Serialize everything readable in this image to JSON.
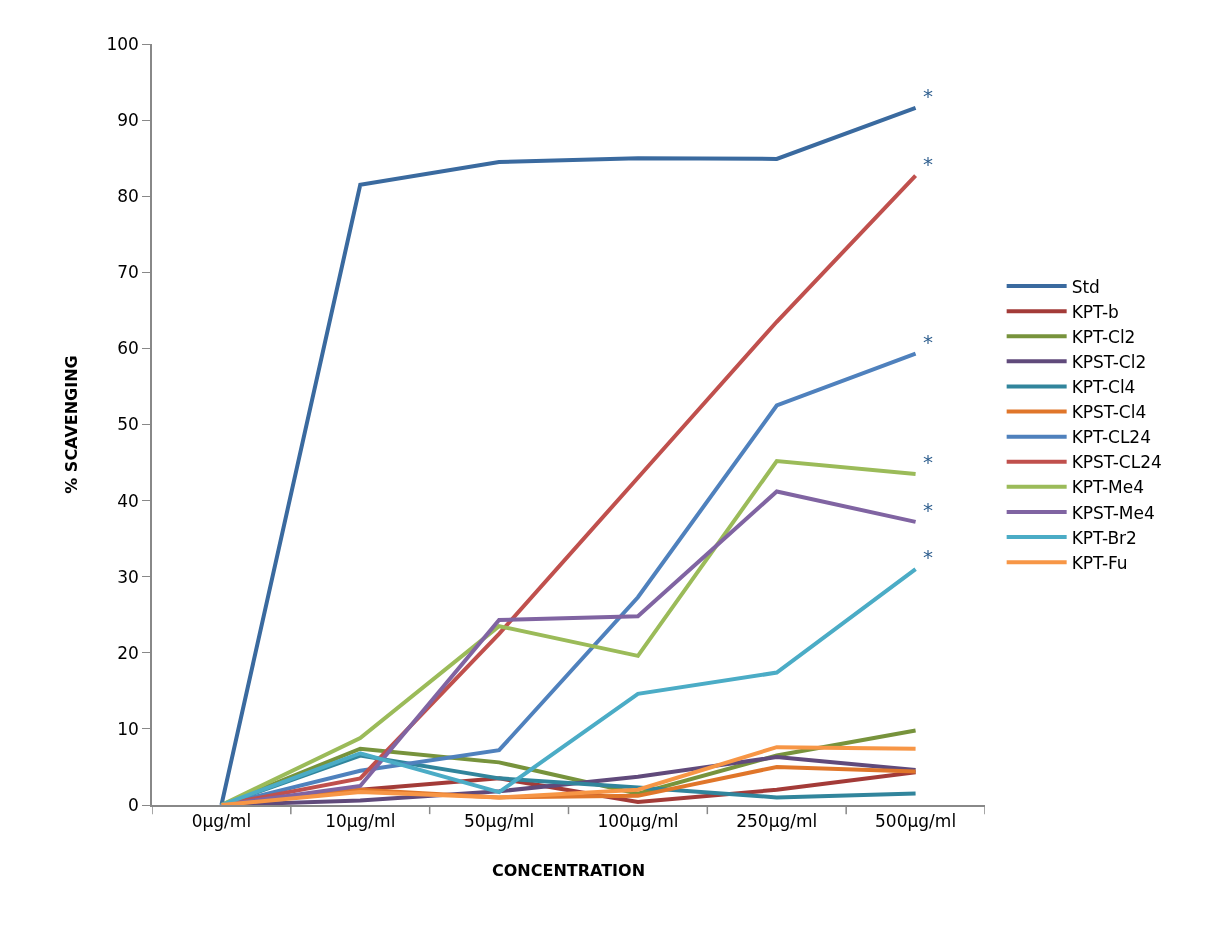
{
  "chart_data": {
    "type": "line",
    "xlabel": "CONCENTRATION",
    "ylabel": "% SCAVENGING",
    "categories": [
      "0μg/ml",
      "10μg/ml",
      "50μg/ml",
      "100μg/ml",
      "250μg/ml",
      "500μg/ml"
    ],
    "ylim": [
      0,
      100
    ],
    "yticks": [
      0,
      10,
      20,
      30,
      40,
      50,
      60,
      70,
      80,
      90,
      100
    ],
    "grid": false,
    "legend": "right",
    "marker": "none",
    "line_style": "solid",
    "series": [
      {
        "name": "Std",
        "color": "#3a6a9f",
        "values": [
          0,
          81.5,
          84.5,
          85,
          84.9,
          91.6
        ]
      },
      {
        "name": "KPT-b",
        "color": "#a33b38",
        "values": [
          0,
          2,
          3.5,
          0.4,
          2,
          4.3
        ]
      },
      {
        "name": "KPT-Cl2",
        "color": "#77933c",
        "values": [
          0,
          7.4,
          5.6,
          1.5,
          6.5,
          9.8
        ]
      },
      {
        "name": "KPST-Cl2",
        "color": "#604a7b",
        "values": [
          0,
          0.6,
          1.8,
          3.7,
          6.3,
          4.6
        ]
      },
      {
        "name": "KPT-Cl4",
        "color": "#31859c",
        "values": [
          0,
          6.5,
          3.5,
          2.3,
          1,
          1.5
        ]
      },
      {
        "name": "KPST-Cl4",
        "color": "#e0762a",
        "values": [
          0,
          2,
          1,
          1.2,
          5,
          4.4
        ]
      },
      {
        "name": "KPT-CL24",
        "color": "#4f81bd",
        "values": [
          0,
          4.5,
          7.2,
          27.3,
          52.5,
          59.3
        ]
      },
      {
        "name": "KPST-CL24",
        "color": "#c0504d",
        "values": [
          0,
          3.5,
          22.5,
          43,
          63.5,
          82.7
        ]
      },
      {
        "name": "KPT-Me4",
        "color": "#9bbb59",
        "values": [
          0,
          8.8,
          23.5,
          19.6,
          45.2,
          43.5
        ]
      },
      {
        "name": "KPST-Me4",
        "color": "#8064a2",
        "values": [
          0,
          2.5,
          24.3,
          24.8,
          41.2,
          37.2
        ]
      },
      {
        "name": "KPT-Br2",
        "color": "#4bacc6",
        "values": [
          0,
          6.8,
          1.7,
          14.6,
          17.4,
          31
        ]
      },
      {
        "name": "KPT-Fu",
        "color": "#f79646",
        "values": [
          0,
          1.7,
          1,
          2,
          7.6,
          7.4
        ]
      }
    ],
    "annotations": [
      {
        "text": "*",
        "x": "500μg/ml",
        "y": 91.6
      },
      {
        "text": "*",
        "x": "500μg/ml",
        "y": 82.7
      },
      {
        "text": "*",
        "x": "500μg/ml",
        "y": 59.3
      },
      {
        "text": "*",
        "x": "500μg/ml",
        "y": 43.5
      },
      {
        "text": "*",
        "x": "500μg/ml",
        "y": 37.2
      },
      {
        "text": "*",
        "x": "500μg/ml",
        "y": 31
      }
    ]
  }
}
